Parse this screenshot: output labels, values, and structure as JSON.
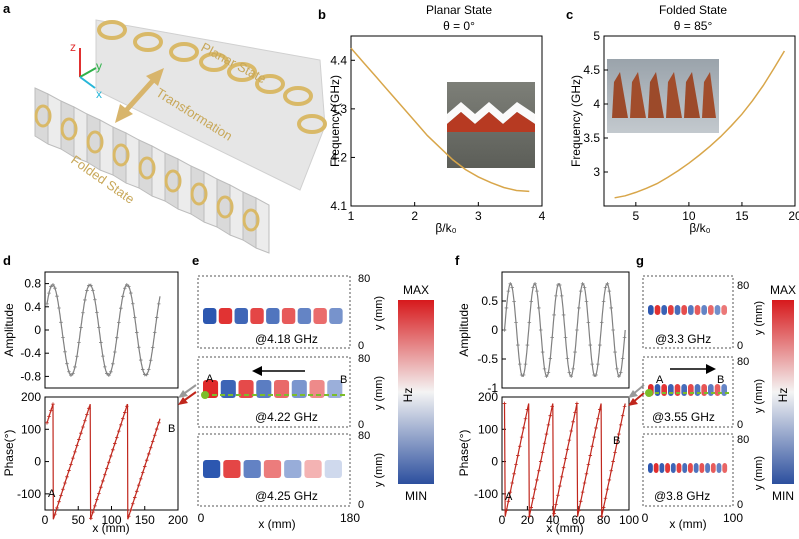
{
  "panel_letters": {
    "a": "a",
    "b": "b",
    "c": "c",
    "d": "d",
    "e": "e",
    "f": "f",
    "g": "g"
  },
  "panel_a": {
    "axes": {
      "z": "z",
      "y": "y",
      "x": "x"
    },
    "planar_label": "Planar State",
    "transformation_label": "Transformation",
    "folded_label": "Folded State",
    "colors": {
      "ring": "#d9b968",
      "label": "#c8a85a",
      "z_axis": "#e03030",
      "y_axis": "#2fb24a",
      "x_axis": "#27b6d8"
    }
  },
  "panel_e": {
    "freqs": [
      "@4.18 GHz",
      "@4.22 GHz",
      "@4.25 GHz"
    ],
    "ylabel": "y (mm)",
    "ytick_top": "80",
    "ytick_bottom": "0",
    "xlabel": "x (mm)",
    "xticks": [
      "0",
      "180"
    ],
    "point_a": "A",
    "point_b": "B",
    "colorbar": {
      "max": "MAX",
      "min": "MIN",
      "label": "Hz"
    }
  },
  "panel_g": {
    "freqs": [
      "@3.3 GHz",
      "@3.55 GHz",
      "@3.8 GHz"
    ],
    "ylabel": "y (mm)",
    "ytick_top": "80",
    "ytick_bottom": "0",
    "xlabel": "x (mm)",
    "xticks": [
      "0",
      "100"
    ],
    "point_a": "A",
    "point_b": "B",
    "colorbar": {
      "max": "MAX",
      "min": "MIN",
      "label": "Hz"
    }
  },
  "chart_data": [
    {
      "id": "b",
      "type": "line",
      "title": "Planar State",
      "subtitle": "θ = 0°",
      "xlabel": "β/k₀",
      "ylabel": "Frequency (GHz)",
      "xlim": [
        1,
        4
      ],
      "ylim": [
        4.1,
        4.45
      ],
      "xticks": [
        1,
        2,
        3,
        4
      ],
      "yticks": [
        4.1,
        4.2,
        4.3,
        4.4
      ],
      "series": [
        {
          "color": "#d8a64a",
          "x": [
            1.0,
            1.2,
            1.4,
            1.6,
            1.8,
            2.0,
            2.2,
            2.4,
            2.6,
            2.8,
            3.0,
            3.2,
            3.4,
            3.6,
            3.8
          ],
          "y": [
            4.425,
            4.395,
            4.365,
            4.335,
            4.305,
            4.275,
            4.245,
            4.22,
            4.195,
            4.175,
            4.16,
            4.148,
            4.138,
            4.132,
            4.13
          ]
        }
      ]
    },
    {
      "id": "c",
      "type": "line",
      "title": "Folded State",
      "subtitle": "θ = 85°",
      "xlabel": "β/k₀",
      "ylabel": "Frequency (GHz)",
      "xlim": [
        2,
        20
      ],
      "ylim": [
        2.5,
        5
      ],
      "xticks": [
        5,
        10,
        15,
        20
      ],
      "yticks": [
        3,
        3.5,
        4,
        4.5,
        5
      ],
      "series": [
        {
          "color": "#d8a64a",
          "x": [
            3,
            4,
            5,
            6,
            7,
            8,
            9,
            10,
            11,
            12,
            13,
            14,
            15,
            16,
            17,
            18,
            19
          ],
          "y": [
            2.62,
            2.65,
            2.7,
            2.76,
            2.83,
            2.92,
            3.02,
            3.13,
            3.25,
            3.38,
            3.52,
            3.68,
            3.85,
            4.05,
            4.27,
            4.52,
            4.78
          ]
        }
      ]
    },
    {
      "id": "d-amplitude",
      "type": "line",
      "ylabel": "Amplitude",
      "xlim": [
        0,
        200
      ],
      "ylim": [
        -1,
        1
      ],
      "yticks": [
        -0.8,
        -0.4,
        0,
        0.4,
        0.8
      ],
      "series": [
        {
          "color": "#808080",
          "period_mm": 56,
          "amp": 0.78,
          "x_start": 3,
          "x_end": 173,
          "phase_at_start": -0.45
        }
      ]
    },
    {
      "id": "d-phase",
      "type": "line",
      "xlabel": "x (mm)",
      "ylabel": "Phase(°)",
      "xlim": [
        0,
        200
      ],
      "ylim": [
        -150,
        200
      ],
      "xticks": [
        0,
        50,
        100,
        150,
        200
      ],
      "yticks": [
        -100,
        0,
        100,
        200
      ],
      "point_a": "A",
      "point_b": "B",
      "series": [
        {
          "color": "#c0261c",
          "period_mm": 56,
          "x_start": 3,
          "x_end": 173,
          "phase_at_start": -120
        }
      ]
    },
    {
      "id": "f-amplitude",
      "type": "line",
      "ylabel": "Amplitude",
      "xlim": [
        0,
        100
      ],
      "ylim": [
        -1,
        1
      ],
      "yticks": [
        -1,
        -0.5,
        0,
        0.5
      ],
      "series": [
        {
          "color": "#808080",
          "period_mm": 19,
          "amp": 0.8,
          "x_start": 2,
          "x_end": 97,
          "phase_at_start": 0
        }
      ]
    },
    {
      "id": "f-phase",
      "type": "line",
      "xlabel": "x (mm)",
      "ylabel": "Phase(°)",
      "xlim": [
        0,
        100
      ],
      "ylim": [
        -150,
        200
      ],
      "xticks": [
        0,
        20,
        40,
        60,
        80,
        100
      ],
      "yticks": [
        -100,
        0,
        100,
        200
      ],
      "point_a": "A",
      "point_b": "B",
      "series": [
        {
          "color": "#c0261c",
          "period_mm": 19,
          "x_start": 2,
          "x_end": 97,
          "phase_at_start": 180
        }
      ]
    }
  ]
}
